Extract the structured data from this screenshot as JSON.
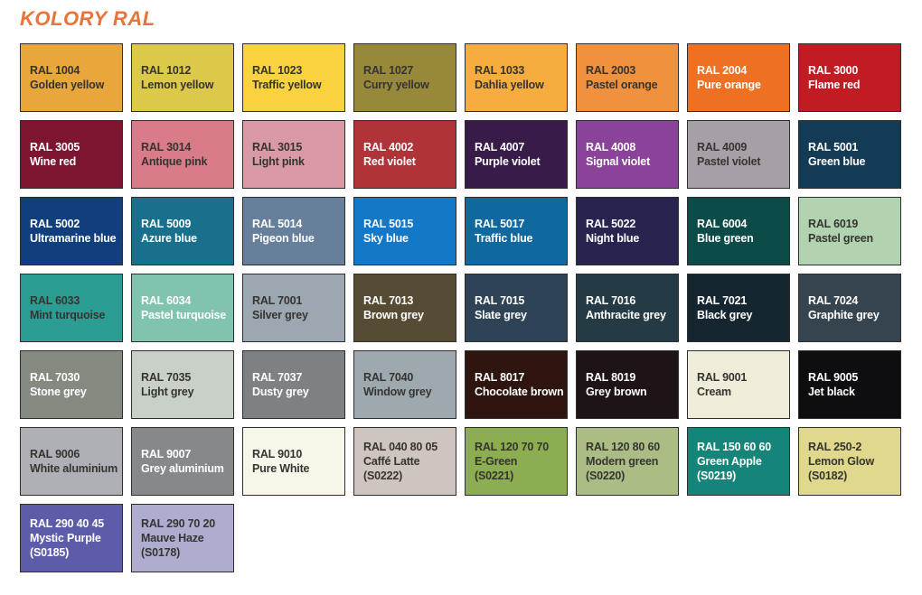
{
  "page": {
    "title": "KOLORY RAL",
    "title_color": "#E8733B",
    "background": "#FFFFFF"
  },
  "palette": {
    "dark_text": "#363430",
    "light_text": "#FFFFFF",
    "swatch_border": "#2E2E2E"
  },
  "chart_data": {
    "type": "table",
    "title": "KOLORY RAL",
    "columns": [
      "code",
      "name",
      "variant",
      "hex",
      "text"
    ],
    "rows": [
      {
        "code": "RAL 1004",
        "name": "Golden yellow",
        "variant": "",
        "hex": "#E9A63B",
        "text": "dark"
      },
      {
        "code": "RAL 1012",
        "name": "Lemon yellow",
        "variant": "",
        "hex": "#DCC849",
        "text": "dark"
      },
      {
        "code": "RAL 1023",
        "name": "Traffic yellow",
        "variant": "",
        "hex": "#F8D23F",
        "text": "dark"
      },
      {
        "code": "RAL 1027",
        "name": "Curry yellow",
        "variant": "",
        "hex": "#97883A",
        "text": "dark"
      },
      {
        "code": "RAL 1033",
        "name": "Dahlia yellow",
        "variant": "",
        "hex": "#F7AC3F",
        "text": "dark"
      },
      {
        "code": "RAL 2003",
        "name": "Pastel orange",
        "variant": "",
        "hex": "#F0913D",
        "text": "dark"
      },
      {
        "code": "RAL 2004",
        "name": "Pure orange",
        "variant": "",
        "hex": "#ED7023",
        "text": "light"
      },
      {
        "code": "RAL 3000",
        "name": "Flame red",
        "variant": "",
        "hex": "#C11B23",
        "text": "light"
      },
      {
        "code": "RAL 3005",
        "name": "Wine red",
        "variant": "",
        "hex": "#7D1430",
        "text": "light"
      },
      {
        "code": "RAL 3014",
        "name": "Antique pink",
        "variant": "",
        "hex": "#DA7B8A",
        "text": "dark"
      },
      {
        "code": "RAL 3015",
        "name": "Light pink",
        "variant": "",
        "hex": "#D999A5",
        "text": "dark"
      },
      {
        "code": "RAL 4002",
        "name": "Red violet",
        "variant": "",
        "hex": "#B03338",
        "text": "light"
      },
      {
        "code": "RAL 4007",
        "name": "Purple violet",
        "variant": "",
        "hex": "#391B4A",
        "text": "light"
      },
      {
        "code": "RAL 4008",
        "name": "Signal violet",
        "variant": "",
        "hex": "#8A4399",
        "text": "light"
      },
      {
        "code": "RAL 4009",
        "name": "Pastel violet",
        "variant": "",
        "hex": "#A79FA8",
        "text": "dark"
      },
      {
        "code": "RAL 5001",
        "name": "Green blue",
        "variant": "",
        "hex": "#133B55",
        "text": "light"
      },
      {
        "code": "RAL 5002",
        "name": "Ultramarine blue",
        "variant": "",
        "hex": "#113E7C",
        "text": "light"
      },
      {
        "code": "RAL 5009",
        "name": "Azure blue",
        "variant": "",
        "hex": "#19708D",
        "text": "light"
      },
      {
        "code": "RAL 5014",
        "name": "Pigeon blue",
        "variant": "",
        "hex": "#66809C",
        "text": "light"
      },
      {
        "code": "RAL 5015",
        "name": "Sky blue",
        "variant": "",
        "hex": "#1478C8",
        "text": "light"
      },
      {
        "code": "RAL 5017",
        "name": "Traffic blue",
        "variant": "",
        "hex": "#0F699E",
        "text": "light"
      },
      {
        "code": "RAL 5022",
        "name": "Night blue",
        "variant": "",
        "hex": "#292350",
        "text": "light"
      },
      {
        "code": "RAL 6004",
        "name": "Blue green",
        "variant": "",
        "hex": "#0D4B48",
        "text": "light"
      },
      {
        "code": "RAL 6019",
        "name": "Pastel green",
        "variant": "",
        "hex": "#B2D3B0",
        "text": "dark"
      },
      {
        "code": "RAL 6033",
        "name": "Mint turquoise",
        "variant": "",
        "hex": "#2B9D92",
        "text": "dark"
      },
      {
        "code": "RAL 6034",
        "name": "Pastel turquoise",
        "variant": "",
        "hex": "#80C3AE",
        "text": "light"
      },
      {
        "code": "RAL 7001",
        "name": "Silver grey",
        "variant": "",
        "hex": "#9CA7B1",
        "text": "dark"
      },
      {
        "code": "RAL 7013",
        "name": "Brown grey",
        "variant": "",
        "hex": "#564C33",
        "text": "light"
      },
      {
        "code": "RAL 7015",
        "name": "Slate grey",
        "variant": "",
        "hex": "#2E4355",
        "text": "light"
      },
      {
        "code": "RAL 7016",
        "name": "Anthracite grey",
        "variant": "",
        "hex": "#243A45",
        "text": "light"
      },
      {
        "code": "RAL 7021",
        "name": "Black grey",
        "variant": "",
        "hex": "#152630",
        "text": "light"
      },
      {
        "code": "RAL 7024",
        "name": "Graphite grey",
        "variant": "",
        "hex": "#36444F",
        "text": "light"
      },
      {
        "code": "RAL 7030",
        "name": "Stone grey",
        "variant": "",
        "hex": "#858A80",
        "text": "light"
      },
      {
        "code": "RAL 7035",
        "name": "Light grey",
        "variant": "",
        "hex": "#C8D0C8",
        "text": "dark"
      },
      {
        "code": "RAL 7037",
        "name": "Dusty grey",
        "variant": "",
        "hex": "#7E8184",
        "text": "light"
      },
      {
        "code": "RAL 7040",
        "name": "Window grey",
        "variant": "",
        "hex": "#9DA9AE",
        "text": "dark"
      },
      {
        "code": "RAL 8017",
        "name": "Chocolate brown",
        "variant": "",
        "hex": "#2E150F",
        "text": "light"
      },
      {
        "code": "RAL 8019",
        "name": "Grey brown",
        "variant": "",
        "hex": "#1E1316",
        "text": "light"
      },
      {
        "code": "RAL 9001",
        "name": "Cream",
        "variant": "",
        "hex": "#F0ECDA",
        "text": "dark"
      },
      {
        "code": "RAL 9005",
        "name": "Jet black",
        "variant": "",
        "hex": "#0E0E10",
        "text": "light"
      },
      {
        "code": "RAL 9006",
        "name": "White aluminium",
        "variant": "",
        "hex": "#AEB0B5",
        "text": "dark"
      },
      {
        "code": "RAL 9007",
        "name": "Grey aluminium",
        "variant": "",
        "hex": "#87888A",
        "text": "light"
      },
      {
        "code": "RAL 9010",
        "name": "Pure White",
        "variant": "",
        "hex": "#F7F6E9",
        "text": "dark"
      },
      {
        "code": "RAL 040 80 05",
        "name": "Caffé Latte",
        "variant": "(S0222)",
        "hex": "#CFC5BF",
        "text": "dark"
      },
      {
        "code": "RAL 120 70 70",
        "name": "E-Green",
        "variant": "(S0221)",
        "hex": "#8CAE50",
        "text": "dark"
      },
      {
        "code": "RAL 120 80 60",
        "name": "Modern green",
        "variant": "(S0220)",
        "hex": "#ABBC84",
        "text": "dark"
      },
      {
        "code": "RAL 150 60 60",
        "name": "Green Apple",
        "variant": "(S0219)",
        "hex": "#15857A",
        "text": "light"
      },
      {
        "code": "RAL 250-2",
        "name": "Lemon Glow",
        "variant": "(S0182)",
        "hex": "#DFD88D",
        "text": "dark"
      },
      {
        "code": "RAL 290 40 45",
        "name": "Mystic Purple",
        "variant": "(S0185)",
        "hex": "#5C5CA8",
        "text": "light"
      },
      {
        "code": "RAL 290 70 20",
        "name": "Mauve Haze",
        "variant": "(S0178)",
        "hex": "#AEADD0",
        "text": "dark"
      }
    ]
  }
}
